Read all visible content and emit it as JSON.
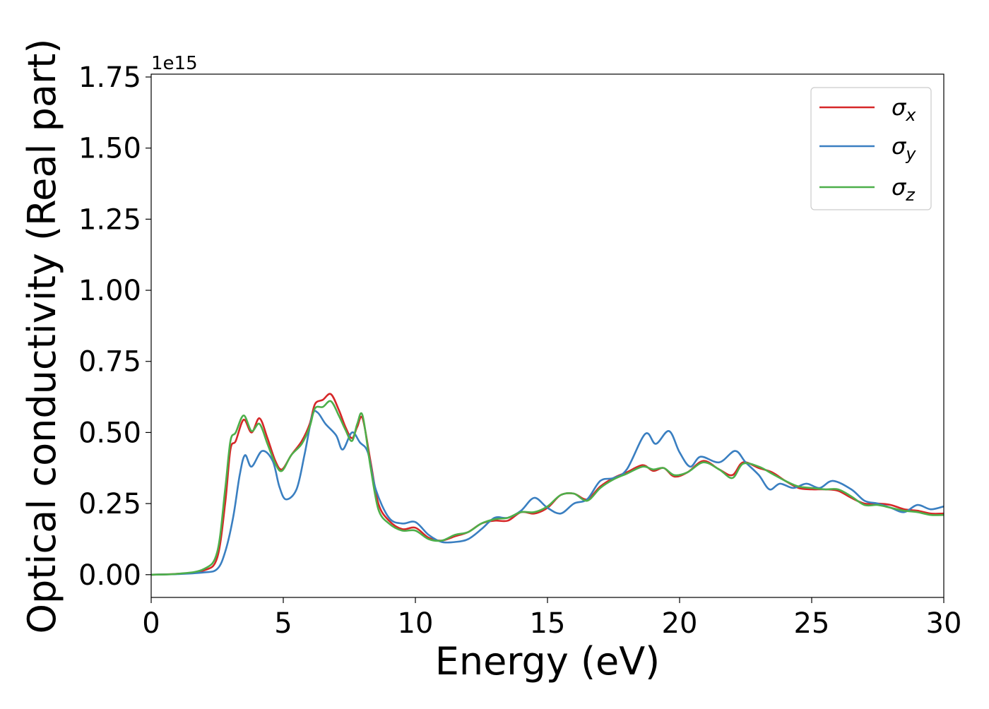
{
  "chart_data": {
    "type": "line",
    "xlabel": "Energy (eV)",
    "ylabel": "Optical conductivity (Real part)",
    "y_offset_label": "1e15",
    "xlim": [
      0,
      30
    ],
    "ylim": [
      -0.08,
      1.76
    ],
    "x_ticks": [
      0,
      5,
      10,
      15,
      20,
      25,
      30
    ],
    "x_tick_labels": [
      "0",
      "5",
      "10",
      "15",
      "20",
      "25",
      "30"
    ],
    "y_ticks": [
      0.0,
      0.25,
      0.5,
      0.75,
      1.0,
      1.25,
      1.5,
      1.75
    ],
    "y_tick_labels": [
      "0.00",
      "0.25",
      "0.50",
      "0.75",
      "1.00",
      "1.25",
      "1.50",
      "1.75"
    ],
    "grid": false,
    "legend_position": "top-right",
    "series": [
      {
        "name": "σx",
        "legend_symbol": "σ",
        "legend_subscript": "x",
        "color": "#d62728",
        "points": [
          [
            0,
            0
          ],
          [
            1,
            0.003
          ],
          [
            2,
            0.015
          ],
          [
            2.5,
            0.06
          ],
          [
            2.8,
            0.25
          ],
          [
            3.0,
            0.44
          ],
          [
            3.2,
            0.47
          ],
          [
            3.5,
            0.545
          ],
          [
            3.8,
            0.5
          ],
          [
            4.1,
            0.55
          ],
          [
            4.4,
            0.48
          ],
          [
            4.7,
            0.4
          ],
          [
            4.95,
            0.37
          ],
          [
            5.3,
            0.42
          ],
          [
            5.7,
            0.47
          ],
          [
            6.0,
            0.53
          ],
          [
            6.2,
            0.6
          ],
          [
            6.5,
            0.615
          ],
          [
            6.8,
            0.635
          ],
          [
            7.1,
            0.58
          ],
          [
            7.35,
            0.52
          ],
          [
            7.6,
            0.48
          ],
          [
            7.8,
            0.52
          ],
          [
            8.0,
            0.55
          ],
          [
            8.3,
            0.4
          ],
          [
            8.6,
            0.25
          ],
          [
            9.0,
            0.19
          ],
          [
            9.5,
            0.16
          ],
          [
            10.0,
            0.165
          ],
          [
            10.5,
            0.13
          ],
          [
            11.0,
            0.12
          ],
          [
            11.5,
            0.135
          ],
          [
            12.0,
            0.15
          ],
          [
            12.5,
            0.18
          ],
          [
            13.0,
            0.19
          ],
          [
            13.5,
            0.19
          ],
          [
            14.0,
            0.22
          ],
          [
            14.5,
            0.215
          ],
          [
            15.0,
            0.235
          ],
          [
            15.5,
            0.28
          ],
          [
            16.0,
            0.285
          ],
          [
            16.5,
            0.265
          ],
          [
            17.0,
            0.31
          ],
          [
            17.5,
            0.34
          ],
          [
            18.0,
            0.36
          ],
          [
            18.6,
            0.385
          ],
          [
            19.0,
            0.365
          ],
          [
            19.4,
            0.375
          ],
          [
            19.8,
            0.345
          ],
          [
            20.3,
            0.36
          ],
          [
            20.9,
            0.4
          ],
          [
            21.5,
            0.37
          ],
          [
            22.0,
            0.35
          ],
          [
            22.4,
            0.395
          ],
          [
            23.0,
            0.375
          ],
          [
            23.5,
            0.36
          ],
          [
            24.0,
            0.33
          ],
          [
            24.5,
            0.305
          ],
          [
            25.0,
            0.3
          ],
          [
            25.5,
            0.3
          ],
          [
            26.0,
            0.295
          ],
          [
            26.5,
            0.27
          ],
          [
            27.0,
            0.25
          ],
          [
            27.5,
            0.25
          ],
          [
            28.0,
            0.245
          ],
          [
            28.5,
            0.23
          ],
          [
            29.0,
            0.225
          ],
          [
            29.5,
            0.215
          ],
          [
            30.0,
            0.215
          ]
        ]
      },
      {
        "name": "σy",
        "legend_symbol": "σ",
        "legend_subscript": "y",
        "color": "#3a7fc1",
        "points": [
          [
            0,
            0
          ],
          [
            1,
            0.002
          ],
          [
            2,
            0.008
          ],
          [
            2.5,
            0.02
          ],
          [
            2.8,
            0.08
          ],
          [
            3.1,
            0.2
          ],
          [
            3.35,
            0.35
          ],
          [
            3.55,
            0.42
          ],
          [
            3.8,
            0.38
          ],
          [
            4.2,
            0.435
          ],
          [
            4.6,
            0.4
          ],
          [
            4.85,
            0.31
          ],
          [
            5.1,
            0.265
          ],
          [
            5.5,
            0.3
          ],
          [
            5.8,
            0.42
          ],
          [
            6.1,
            0.56
          ],
          [
            6.3,
            0.57
          ],
          [
            6.6,
            0.53
          ],
          [
            7.0,
            0.49
          ],
          [
            7.25,
            0.44
          ],
          [
            7.6,
            0.5
          ],
          [
            7.9,
            0.465
          ],
          [
            8.2,
            0.43
          ],
          [
            8.5,
            0.3
          ],
          [
            9.0,
            0.2
          ],
          [
            9.5,
            0.18
          ],
          [
            10.0,
            0.185
          ],
          [
            10.5,
            0.14
          ],
          [
            11.0,
            0.115
          ],
          [
            11.5,
            0.115
          ],
          [
            12.0,
            0.125
          ],
          [
            12.5,
            0.16
          ],
          [
            13.0,
            0.2
          ],
          [
            13.5,
            0.2
          ],
          [
            14.0,
            0.225
          ],
          [
            14.5,
            0.27
          ],
          [
            15.0,
            0.235
          ],
          [
            15.5,
            0.215
          ],
          [
            16.0,
            0.25
          ],
          [
            16.5,
            0.265
          ],
          [
            17.0,
            0.33
          ],
          [
            17.5,
            0.34
          ],
          [
            18.0,
            0.37
          ],
          [
            18.7,
            0.495
          ],
          [
            19.1,
            0.46
          ],
          [
            19.6,
            0.505
          ],
          [
            20.0,
            0.43
          ],
          [
            20.4,
            0.38
          ],
          [
            20.8,
            0.415
          ],
          [
            21.5,
            0.395
          ],
          [
            22.1,
            0.435
          ],
          [
            22.5,
            0.395
          ],
          [
            23.0,
            0.35
          ],
          [
            23.4,
            0.3
          ],
          [
            23.8,
            0.32
          ],
          [
            24.3,
            0.305
          ],
          [
            24.8,
            0.32
          ],
          [
            25.3,
            0.305
          ],
          [
            25.8,
            0.33
          ],
          [
            26.5,
            0.3
          ],
          [
            27.0,
            0.26
          ],
          [
            27.5,
            0.25
          ],
          [
            28.0,
            0.235
          ],
          [
            28.5,
            0.22
          ],
          [
            29.0,
            0.245
          ],
          [
            29.5,
            0.23
          ],
          [
            30.0,
            0.24
          ]
        ]
      },
      {
        "name": "σz",
        "legend_symbol": "σ",
        "legend_subscript": "z",
        "color": "#4daf4a",
        "points": [
          [
            0,
            0
          ],
          [
            1,
            0.003
          ],
          [
            2,
            0.02
          ],
          [
            2.5,
            0.08
          ],
          [
            2.8,
            0.3
          ],
          [
            3.0,
            0.47
          ],
          [
            3.2,
            0.5
          ],
          [
            3.5,
            0.56
          ],
          [
            3.8,
            0.505
          ],
          [
            4.1,
            0.53
          ],
          [
            4.4,
            0.46
          ],
          [
            4.7,
            0.39
          ],
          [
            4.95,
            0.365
          ],
          [
            5.3,
            0.42
          ],
          [
            5.7,
            0.46
          ],
          [
            6.0,
            0.52
          ],
          [
            6.2,
            0.585
          ],
          [
            6.5,
            0.59
          ],
          [
            6.8,
            0.61
          ],
          [
            7.1,
            0.56
          ],
          [
            7.35,
            0.51
          ],
          [
            7.6,
            0.47
          ],
          [
            7.8,
            0.53
          ],
          [
            8.0,
            0.56
          ],
          [
            8.3,
            0.38
          ],
          [
            8.6,
            0.23
          ],
          [
            9.0,
            0.18
          ],
          [
            9.5,
            0.155
          ],
          [
            10.0,
            0.155
          ],
          [
            10.5,
            0.125
          ],
          [
            11.0,
            0.12
          ],
          [
            11.5,
            0.14
          ],
          [
            12.0,
            0.15
          ],
          [
            12.5,
            0.18
          ],
          [
            13.0,
            0.195
          ],
          [
            13.5,
            0.2
          ],
          [
            14.0,
            0.22
          ],
          [
            14.5,
            0.22
          ],
          [
            15.0,
            0.24
          ],
          [
            15.5,
            0.28
          ],
          [
            16.0,
            0.285
          ],
          [
            16.5,
            0.26
          ],
          [
            17.0,
            0.305
          ],
          [
            17.5,
            0.335
          ],
          [
            18.0,
            0.355
          ],
          [
            18.6,
            0.38
          ],
          [
            19.0,
            0.37
          ],
          [
            19.4,
            0.375
          ],
          [
            19.8,
            0.35
          ],
          [
            20.3,
            0.36
          ],
          [
            20.9,
            0.395
          ],
          [
            21.5,
            0.37
          ],
          [
            22.0,
            0.34
          ],
          [
            22.4,
            0.39
          ],
          [
            23.0,
            0.38
          ],
          [
            23.5,
            0.355
          ],
          [
            24.0,
            0.33
          ],
          [
            24.5,
            0.31
          ],
          [
            25.0,
            0.305
          ],
          [
            25.5,
            0.3
          ],
          [
            26.0,
            0.3
          ],
          [
            26.5,
            0.275
          ],
          [
            27.0,
            0.245
          ],
          [
            27.5,
            0.245
          ],
          [
            28.0,
            0.235
          ],
          [
            28.5,
            0.225
          ],
          [
            29.0,
            0.22
          ],
          [
            29.5,
            0.21
          ],
          [
            30.0,
            0.21
          ]
        ]
      }
    ]
  }
}
